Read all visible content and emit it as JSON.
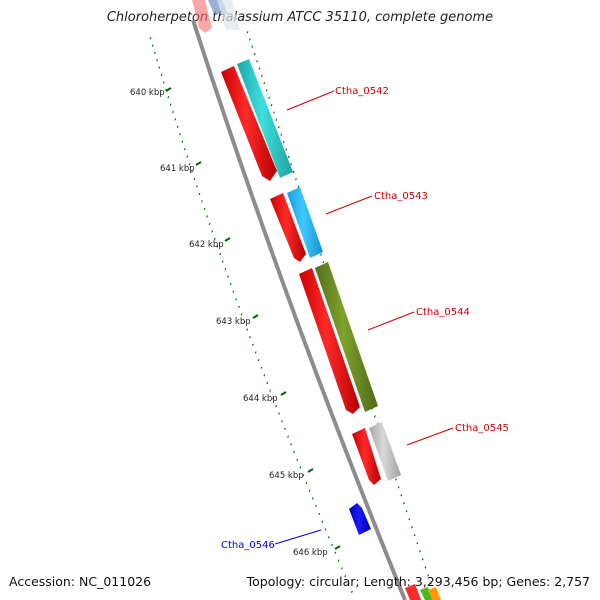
{
  "title": "Chloroherpeton thalassium ATCC 35110, complete genome",
  "footer": {
    "accession": "Accession: NC_011026",
    "topology": "Topology: circular; Length: 3,293,456 bp; Genes: 2,757"
  },
  "ticks": [
    {
      "label": "640 kbp"
    },
    {
      "label": "641 kbp"
    },
    {
      "label": "642 kbp"
    },
    {
      "label": "643 kbp"
    },
    {
      "label": "644 kbp"
    },
    {
      "label": "645 kbp"
    },
    {
      "label": "646 kbp"
    }
  ],
  "gene_labels": [
    {
      "text": "Ctha_0542",
      "color": "#cc0000"
    },
    {
      "text": "Ctha_0543",
      "color": "#cc0000"
    },
    {
      "text": "Ctha_0544",
      "color": "#cc0000"
    },
    {
      "text": "Ctha_0545",
      "color": "#cc0000"
    },
    {
      "text": "Ctha_0546",
      "color": "#0000cc"
    }
  ],
  "colors": {
    "backbone": "#8c8c8c",
    "cds": "#ff0000",
    "tick": "#006600",
    "orf_cyan": "#33cccc",
    "orf_skyblue": "#33bbff",
    "orf_olive": "#6b8e23",
    "orf_gray": "#c8c8c8",
    "gene_blue": "#0000ee"
  }
}
